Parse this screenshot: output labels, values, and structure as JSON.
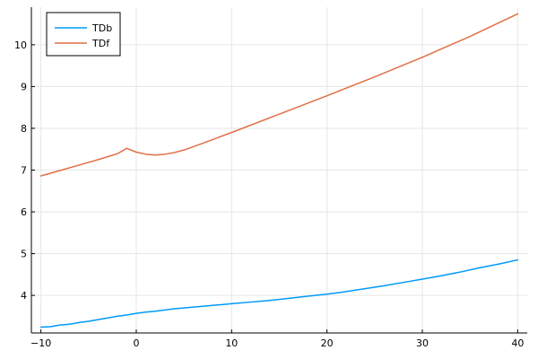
{
  "chart_data": {
    "type": "line",
    "title": "",
    "xlabel": "",
    "ylabel": "",
    "xlim": [
      -11,
      41
    ],
    "ylim": [
      3.1,
      10.9
    ],
    "xticks": [
      -10,
      0,
      10,
      20,
      30,
      40
    ],
    "yticks": [
      4,
      5,
      6,
      7,
      8,
      9,
      10
    ],
    "grid": true,
    "legend_position": "top-left",
    "series": [
      {
        "name": "TDb",
        "color": "#009af9",
        "x": [
          -10,
          -9,
          -8,
          -7,
          -6,
          -5,
          -4,
          -3,
          -2,
          -1,
          0,
          1,
          2,
          3,
          4,
          5,
          6,
          7,
          8,
          9,
          10,
          12,
          14,
          16,
          18,
          20,
          22,
          24,
          26,
          28,
          30,
          32,
          34,
          36,
          38,
          40
        ],
        "y": [
          3.24,
          3.25,
          3.29,
          3.31,
          3.35,
          3.38,
          3.42,
          3.46,
          3.5,
          3.53,
          3.57,
          3.6,
          3.62,
          3.65,
          3.68,
          3.7,
          3.72,
          3.74,
          3.76,
          3.78,
          3.8,
          3.84,
          3.88,
          3.93,
          3.98,
          4.03,
          4.09,
          4.16,
          4.23,
          4.31,
          4.39,
          4.47,
          4.56,
          4.66,
          4.75,
          4.85
        ]
      },
      {
        "name": "TDf",
        "color": "#e26f46",
        "x": [
          -10,
          -8,
          -6,
          -4,
          -2,
          -1,
          0,
          1,
          2,
          3,
          4,
          5,
          6,
          8,
          10,
          15,
          20,
          25,
          30,
          35,
          40
        ],
        "y": [
          6.86,
          6.99,
          7.12,
          7.25,
          7.39,
          7.52,
          7.43,
          7.38,
          7.36,
          7.38,
          7.42,
          7.48,
          7.56,
          7.73,
          7.9,
          8.34,
          8.78,
          9.23,
          9.7,
          10.2,
          10.74
        ]
      }
    ]
  }
}
